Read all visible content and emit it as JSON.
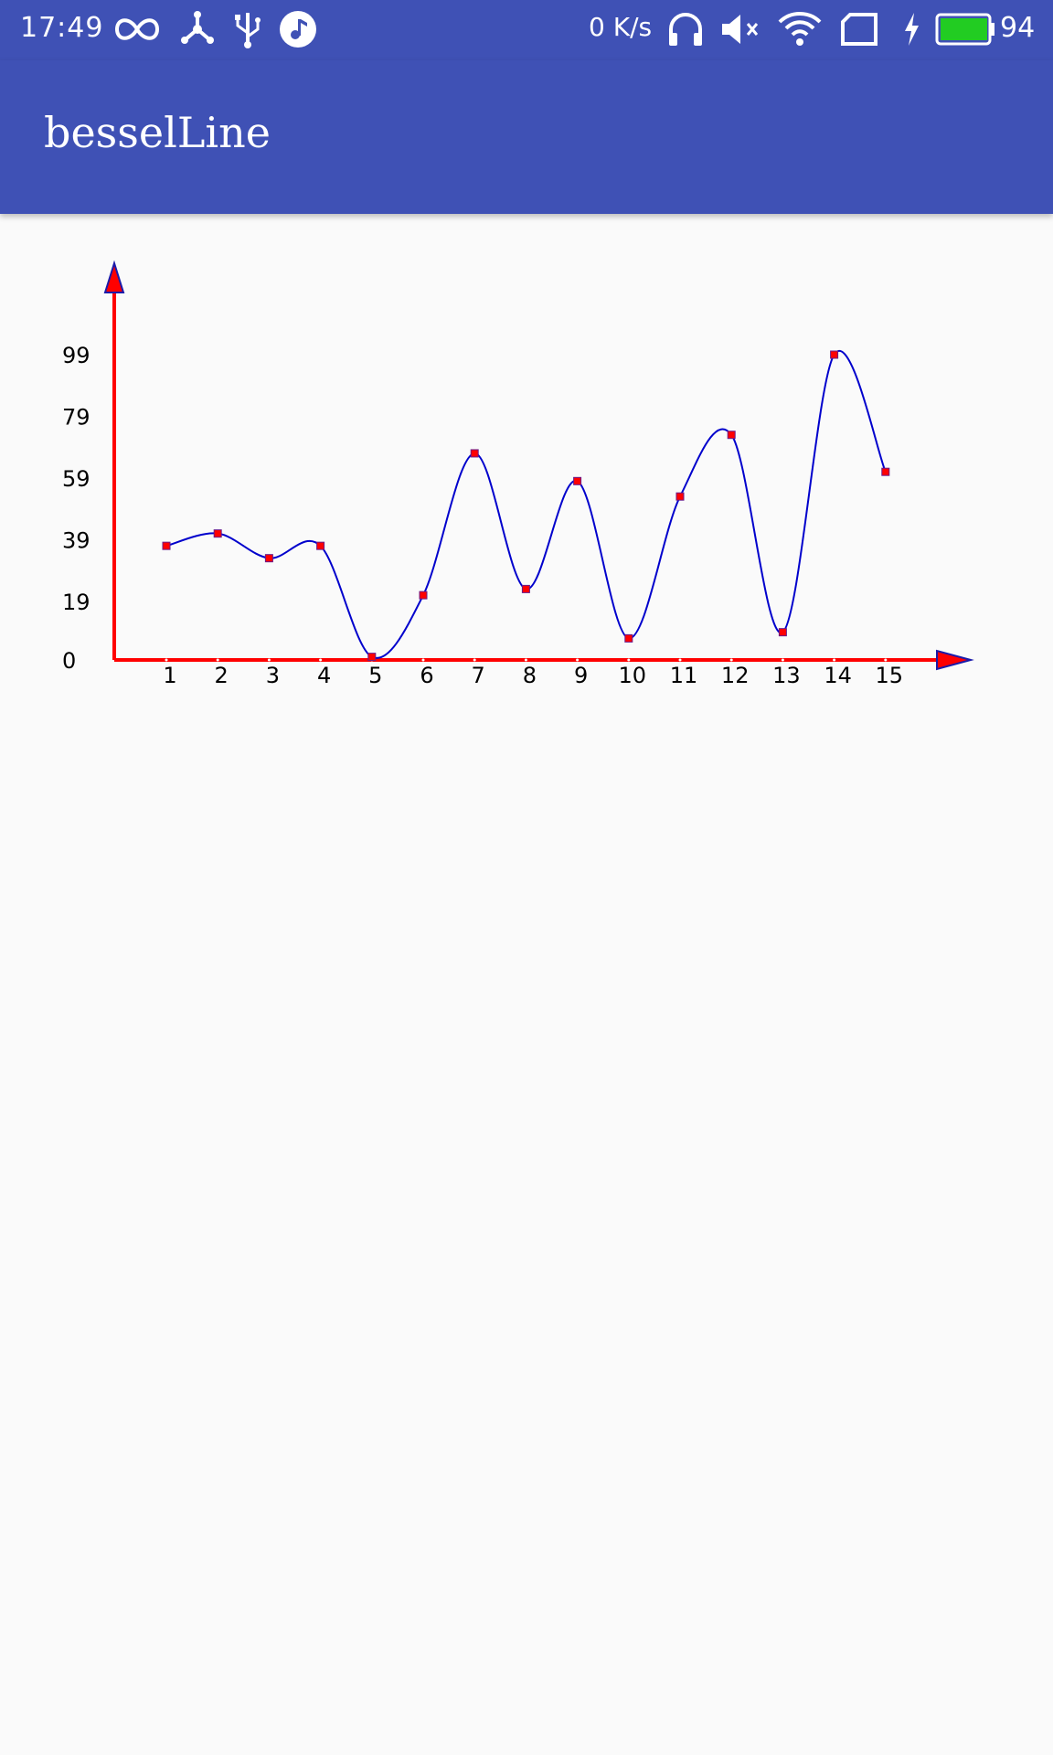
{
  "status_bar": {
    "time": "17:49",
    "net_speed": "0 K/s",
    "battery": "94",
    "icons": [
      "infinity-icon",
      "share-hub-icon",
      "usb-icon",
      "music-icon",
      "headphones-icon",
      "mute-icon",
      "wifi-icon",
      "sim-card-icon",
      "charging-icon",
      "battery-icon"
    ]
  },
  "app_bar": {
    "title": "besselLine"
  },
  "colors": {
    "primary": "#3f51b5",
    "axis": "#ff0000",
    "curve": "#0000cc",
    "point": "#ff0000",
    "arrow_stroke": "#1a1aaa",
    "battery": "#22cc22"
  },
  "chart_data": {
    "type": "line",
    "smooth": true,
    "x": [
      1,
      2,
      3,
      4,
      5,
      6,
      7,
      8,
      9,
      10,
      11,
      12,
      13,
      14,
      15
    ],
    "y_ticks": [
      "0",
      "19",
      "39",
      "59",
      "79",
      "99"
    ],
    "values": [
      37,
      41,
      33,
      37,
      1,
      21,
      67,
      23,
      58,
      7,
      53,
      73,
      9,
      99,
      61
    ],
    "ylim": [
      0,
      99
    ],
    "grid": false,
    "legend": "none"
  }
}
